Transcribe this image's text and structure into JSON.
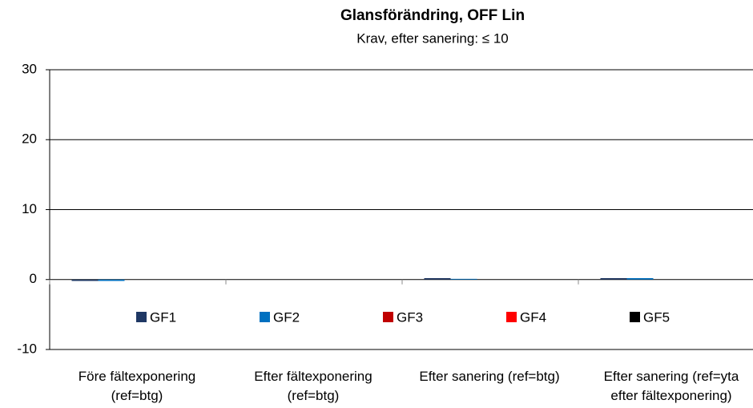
{
  "chart_data": {
    "type": "bar",
    "title": "Glansförändring, OFF Lin",
    "subtitle": "Krav, efter sanering: ≤ 10",
    "categories": [
      "Före fältexponering\n(ref=btg)",
      "Efter fältexponering\n(ref=btg)",
      "Efter sanering (ref=btg)",
      "Efter sanering (ref=yta\nefter fältexponering)"
    ],
    "series": [
      {
        "name": "GF1",
        "color": "#1f3864",
        "values": [
          -0.2,
          0,
          0.2,
          0.2
        ]
      },
      {
        "name": "GF2",
        "color": "#0070c0",
        "values": [
          -0.2,
          0,
          0.1,
          0.2
        ]
      },
      {
        "name": "GF3",
        "color": "#c00000",
        "values": [
          0,
          0,
          0,
          0
        ]
      },
      {
        "name": "GF4",
        "color": "#ff0000",
        "values": [
          0,
          0,
          0,
          0
        ]
      },
      {
        "name": "GF5",
        "color": "#000000",
        "values": [
          0,
          0,
          0,
          0
        ]
      }
    ],
    "ylim": [
      -10,
      30
    ],
    "yticks": [
      -10,
      0,
      10,
      20,
      30
    ],
    "grid": true,
    "legend": "inside-bottom"
  }
}
